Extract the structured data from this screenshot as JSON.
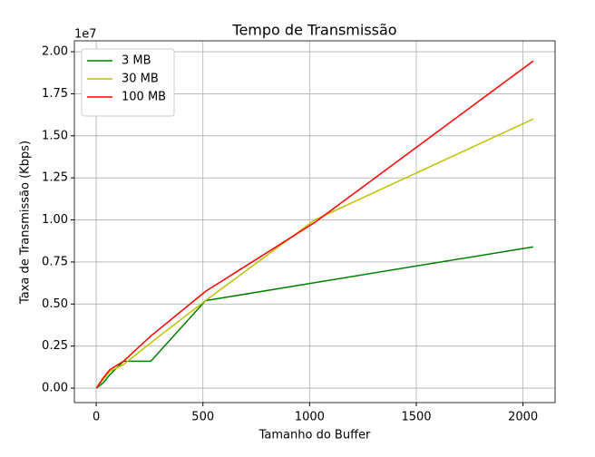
{
  "chart_data": {
    "type": "line",
    "title": "Tempo de Transmissão",
    "xlabel": "Tamanho do Buffer",
    "ylabel": "Taxa de Transmissão (Kbps)",
    "y_offset_label": "1e7",
    "x": [
      1,
      32,
      64,
      128,
      256,
      512,
      1024,
      2048
    ],
    "series": [
      {
        "name": "3 MB",
        "color": "#008000",
        "values": [
          0,
          0.03,
          0.08,
          0.16,
          0.16,
          0.52,
          0.627,
          0.84
        ]
      },
      {
        "name": "30 MB",
        "color": "#bfbf00",
        "values": [
          0,
          0.05,
          0.1,
          0.14,
          0.27,
          0.52,
          1.0,
          1.6
        ]
      },
      {
        "name": "100 MB",
        "color": "#ff0000",
        "values": [
          0,
          0.06,
          0.11,
          0.16,
          0.31,
          0.575,
          0.985,
          1.945
        ]
      }
    ],
    "xlim": [
      -102.4,
      2150.4
    ],
    "xticks": [
      0,
      500,
      1000,
      1500,
      2000
    ],
    "ylim": [
      -0.086,
      2.065
    ],
    "yticks": [
      {
        "value": 0,
        "label": "0.00"
      },
      0.25,
      {
        "value": 0.5,
        "label": "0.50"
      },
      0.75,
      {
        "value": 1,
        "label": "1.00"
      },
      1.25,
      {
        "value": 1.5,
        "label": "1.50"
      },
      1.75,
      {
        "value": 2,
        "label": "2.00"
      }
    ],
    "grid": true,
    "legend": "upper-left"
  }
}
